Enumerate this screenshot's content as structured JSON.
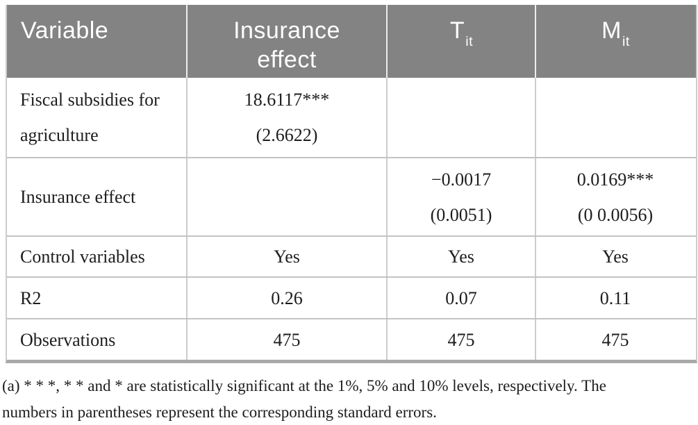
{
  "colors": {
    "header_bg": "#838383",
    "header_text": "#ffffff",
    "body_text": "#1d1d1d",
    "row_divider": "#c3c3c3",
    "bottom_bar": "#a9a9a9"
  },
  "table": {
    "header": {
      "variable": "Variable",
      "insurance_effect": "Insurance effect",
      "t_base": "T",
      "t_sub": "it",
      "m_base": "M",
      "m_sub": "it"
    },
    "fiscal": {
      "label_line1": "Fiscal subsidies for",
      "label_line2": "agriculture",
      "insurance_line1": "18.6117***",
      "insurance_line2": "(2.6622)",
      "t": "",
      "m": ""
    },
    "insurance": {
      "label": "Insurance effect",
      "insurance": "",
      "t_line1": "−0.0017",
      "t_line2": "(0.0051)",
      "m_line1": "0.0169***",
      "m_line2": "(0 0.0056)"
    },
    "controls": {
      "label": "Control variables",
      "insurance": "Yes",
      "t": "Yes",
      "m": "Yes"
    },
    "r2": {
      "label": "R2",
      "insurance": "0.26",
      "t": "0.07",
      "m": "0.11"
    },
    "observations": {
      "label": "Observations",
      "insurance": "475",
      "t": "475",
      "m": "475"
    }
  },
  "footnote": {
    "line1": "(a) * * *, * * and * are statistically significant at the 1%, 5% and 10% levels, respectively. The",
    "line2": "numbers in parentheses represent the corresponding standard errors."
  }
}
